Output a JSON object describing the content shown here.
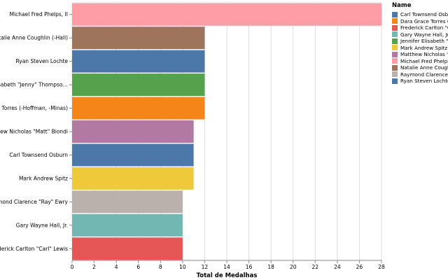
{
  "chart_data": {
    "type": "bar",
    "orientation": "horizontal",
    "xlabel": "Total de Medalhas",
    "ylabel": "",
    "xlim": [
      0,
      28
    ],
    "xticks": [
      0,
      2,
      4,
      6,
      8,
      10,
      12,
      14,
      16,
      18,
      20,
      22,
      24,
      26,
      28
    ],
    "grid": true,
    "legend_position": "right",
    "bars": [
      {
        "label": "Michael Fred Phelps, II",
        "value": 28,
        "color": "#ff9da7"
      },
      {
        "label": "Natalie Anne Coughlin (-Hall)",
        "value": 12,
        "color": "#9d755d"
      },
      {
        "label": "Ryan Steven Lochte",
        "value": 12,
        "color": "#4c78a8"
      },
      {
        "label": "Jennifer Elisabeth \"Jenny\" Thompso…",
        "value": 12,
        "color": "#54a24b"
      },
      {
        "label": "Dara Grace Torres (-Hoffman, -Minas)",
        "value": 12,
        "color": "#f58518"
      },
      {
        "label": "Matthew Nicholas \"Matt\" Biondi",
        "value": 11,
        "color": "#b279a2"
      },
      {
        "label": "Carl Townsend Osburn",
        "value": 11,
        "color": "#4c78a8"
      },
      {
        "label": "Mark Andrew Spitz",
        "value": 11,
        "color": "#eeca3b"
      },
      {
        "label": "Raymond Clarence \"Ray\" Ewry",
        "value": 10,
        "color": "#bab0ac"
      },
      {
        "label": "Gary Wayne Hall, Jr.",
        "value": 10,
        "color": "#72b7b2"
      },
      {
        "label": "Frederick Carlton \"Carl\" Lewis",
        "value": 10,
        "color": "#e45756"
      }
    ]
  },
  "legend": {
    "title": "Name",
    "items": [
      {
        "label": "Carl Townsend Osbu",
        "color": "#4c78a8"
      },
      {
        "label": "Dara Grace Torres (-",
        "color": "#f58518"
      },
      {
        "label": "Frederick Carlton \"C",
        "color": "#e45756"
      },
      {
        "label": "Gary Wayne Hall, Jr.",
        "color": "#72b7b2"
      },
      {
        "label": "Jennifer Elisabeth \"J",
        "color": "#54a24b"
      },
      {
        "label": "Mark Andrew Spitz",
        "color": "#eeca3b"
      },
      {
        "label": "Matthew Nicholas \"",
        "color": "#b279a2"
      },
      {
        "label": "Michael Fred Phelps",
        "color": "#ff9da7"
      },
      {
        "label": "Natalie Anne Cough",
        "color": "#9d755d"
      },
      {
        "label": "Raymond Clarence \"",
        "color": "#bab0ac"
      },
      {
        "label": "Ryan Steven Lochte",
        "color": "#4c78a8"
      }
    ]
  }
}
